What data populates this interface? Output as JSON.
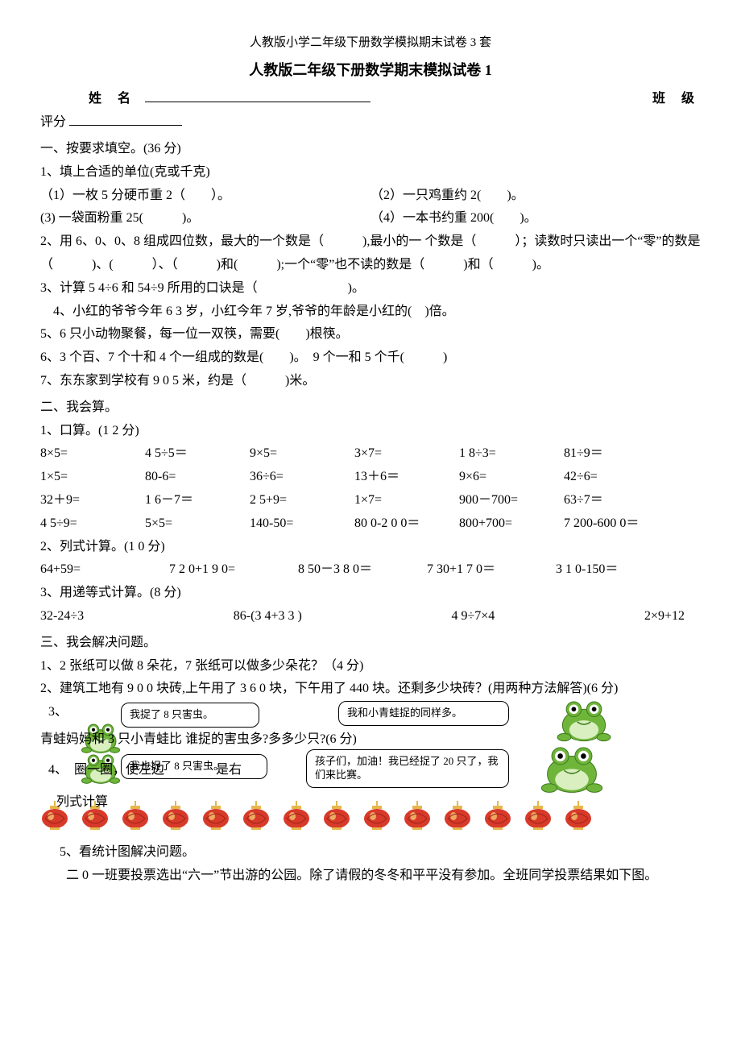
{
  "header_small": "人教版小学二年级下册数学模拟期末试卷 3 套",
  "title": "人教版二年级下册数学期末模拟试卷 1",
  "labels": {
    "name": "姓 名",
    "class": "班 级",
    "score": "评分"
  },
  "section1": {
    "heading": "一、按要求填空。(36 分)",
    "q1": "1、填上合适的单位(克或千克)",
    "q1_1": "（1）一枚 5 分硬币重 2（　　）。",
    "q1_2": "（2）一只鸡重约 2(　　)。",
    "q1_3": "(3) 一袋面粉重 25(　　　)。",
    "q1_4": "（4）一本书约重 200(　　)。",
    "q2": "2、用 6、0、0、8 组成四位数，最大的一个数是（　　　),最小的一 个数是（　　　）；读数时只读出一个“零”的数是（　　　)、(　　　）、（　　　)和(　　　);一个“零”也不读的数是（　　　)和（　　　)。",
    "q3": "3、计算 5 4÷6 和 54÷9 所用的口诀是（　　　　　　　)。",
    "q4": "4、小红的爷爷今年 6 3 岁，小红今年 7 岁,爷爷的年龄是小红的(　)倍。",
    "q5": "5、6 只小动物聚餐，每一位一双筷，需要(　　)根筷。",
    "q6": "6、3 个百、7 个十和 4 个一组成的数是(　　)。　9 个一和 5 个千(　　　)",
    "q7": "7、东东家到学校有 9 0 5 米，约是（　　　)米。"
  },
  "section2": {
    "heading": "二、我会算。",
    "sub1": "1、口算。(1 2 分)",
    "row1": [
      "8×5=",
      "4 5÷5＝",
      "9×5=",
      "3×7=",
      "1 8÷3=",
      "81÷9＝"
    ],
    "row2": [
      "1×5=",
      "80-6=",
      "36÷6=",
      "13＋6＝",
      "9×6=",
      "42÷6="
    ],
    "row3": [
      "32＋9=",
      "1 6－7＝",
      "2 5+9=",
      "1×7=",
      "900－700=",
      "63÷7＝"
    ],
    "row4": [
      "4 5÷9=",
      "5×5=",
      "140-50=",
      "80 0-2 0 0＝",
      "800+700=",
      "7 200-600 0＝"
    ],
    "sub2": "2、列式计算。(1 0 分)",
    "row5": [
      "64+59=",
      "7 2 0+1 9 0=",
      "8 50－3 8 0＝",
      "7 30+1 7 0＝",
      "3 1 0-150＝"
    ],
    "sub3": "3、用递等式计算。(8 分)",
    "row6": [
      "32-24÷3",
      "86-(3 4+3 3 )",
      "4 9÷7×4",
      "2×9+12"
    ]
  },
  "section3": {
    "heading": "三、我会解决问题。",
    "q1": "1、2 张纸可以做 8 朵花，7 张纸可以做多少朵花？（4 分)",
    "q2": "2、建筑工地有 9 0 0 块砖,上午用了 3 6 0 块，下午用了 440 块。还剩多少块砖？(用两种方法解答)(6 分)",
    "q3_prefix": "3、",
    "q3_line": "青蛙妈妈和 3 只小青蛙比 谁捉的害虫多?多多少只?(6 分)",
    "q4_line": "4、　圈一圈，使左边　　　　是右　　　",
    "q4_tail": "列式计算",
    "bubble1": "我捉了 8 只害虫。",
    "bubble2": "我和小青蛙捉的同样多。",
    "bubble3": "我也捉了 8 只害虫。",
    "bubble4": "孩子们，加油！我已经捉了 20 只了，我们来比赛。",
    "q5": "5、看统计图解决问题。",
    "q5_para": "二 0 一班要投票选出“六一”节出游的公园。除了请假的冬冬和平平没有参加。全班同学投票结果如下图。"
  },
  "colors": {
    "text": "#000000",
    "bg": "#ffffff",
    "frog_body": "#6fb53a",
    "frog_dark": "#3d7a1e",
    "frog_belly": "#d9efc0",
    "frog_eye": "#ffffff",
    "lantern_red": "#d83a2a",
    "lantern_gold": "#e6b84c",
    "lantern_shine": "#f5d97a"
  },
  "lantern_count": 14
}
